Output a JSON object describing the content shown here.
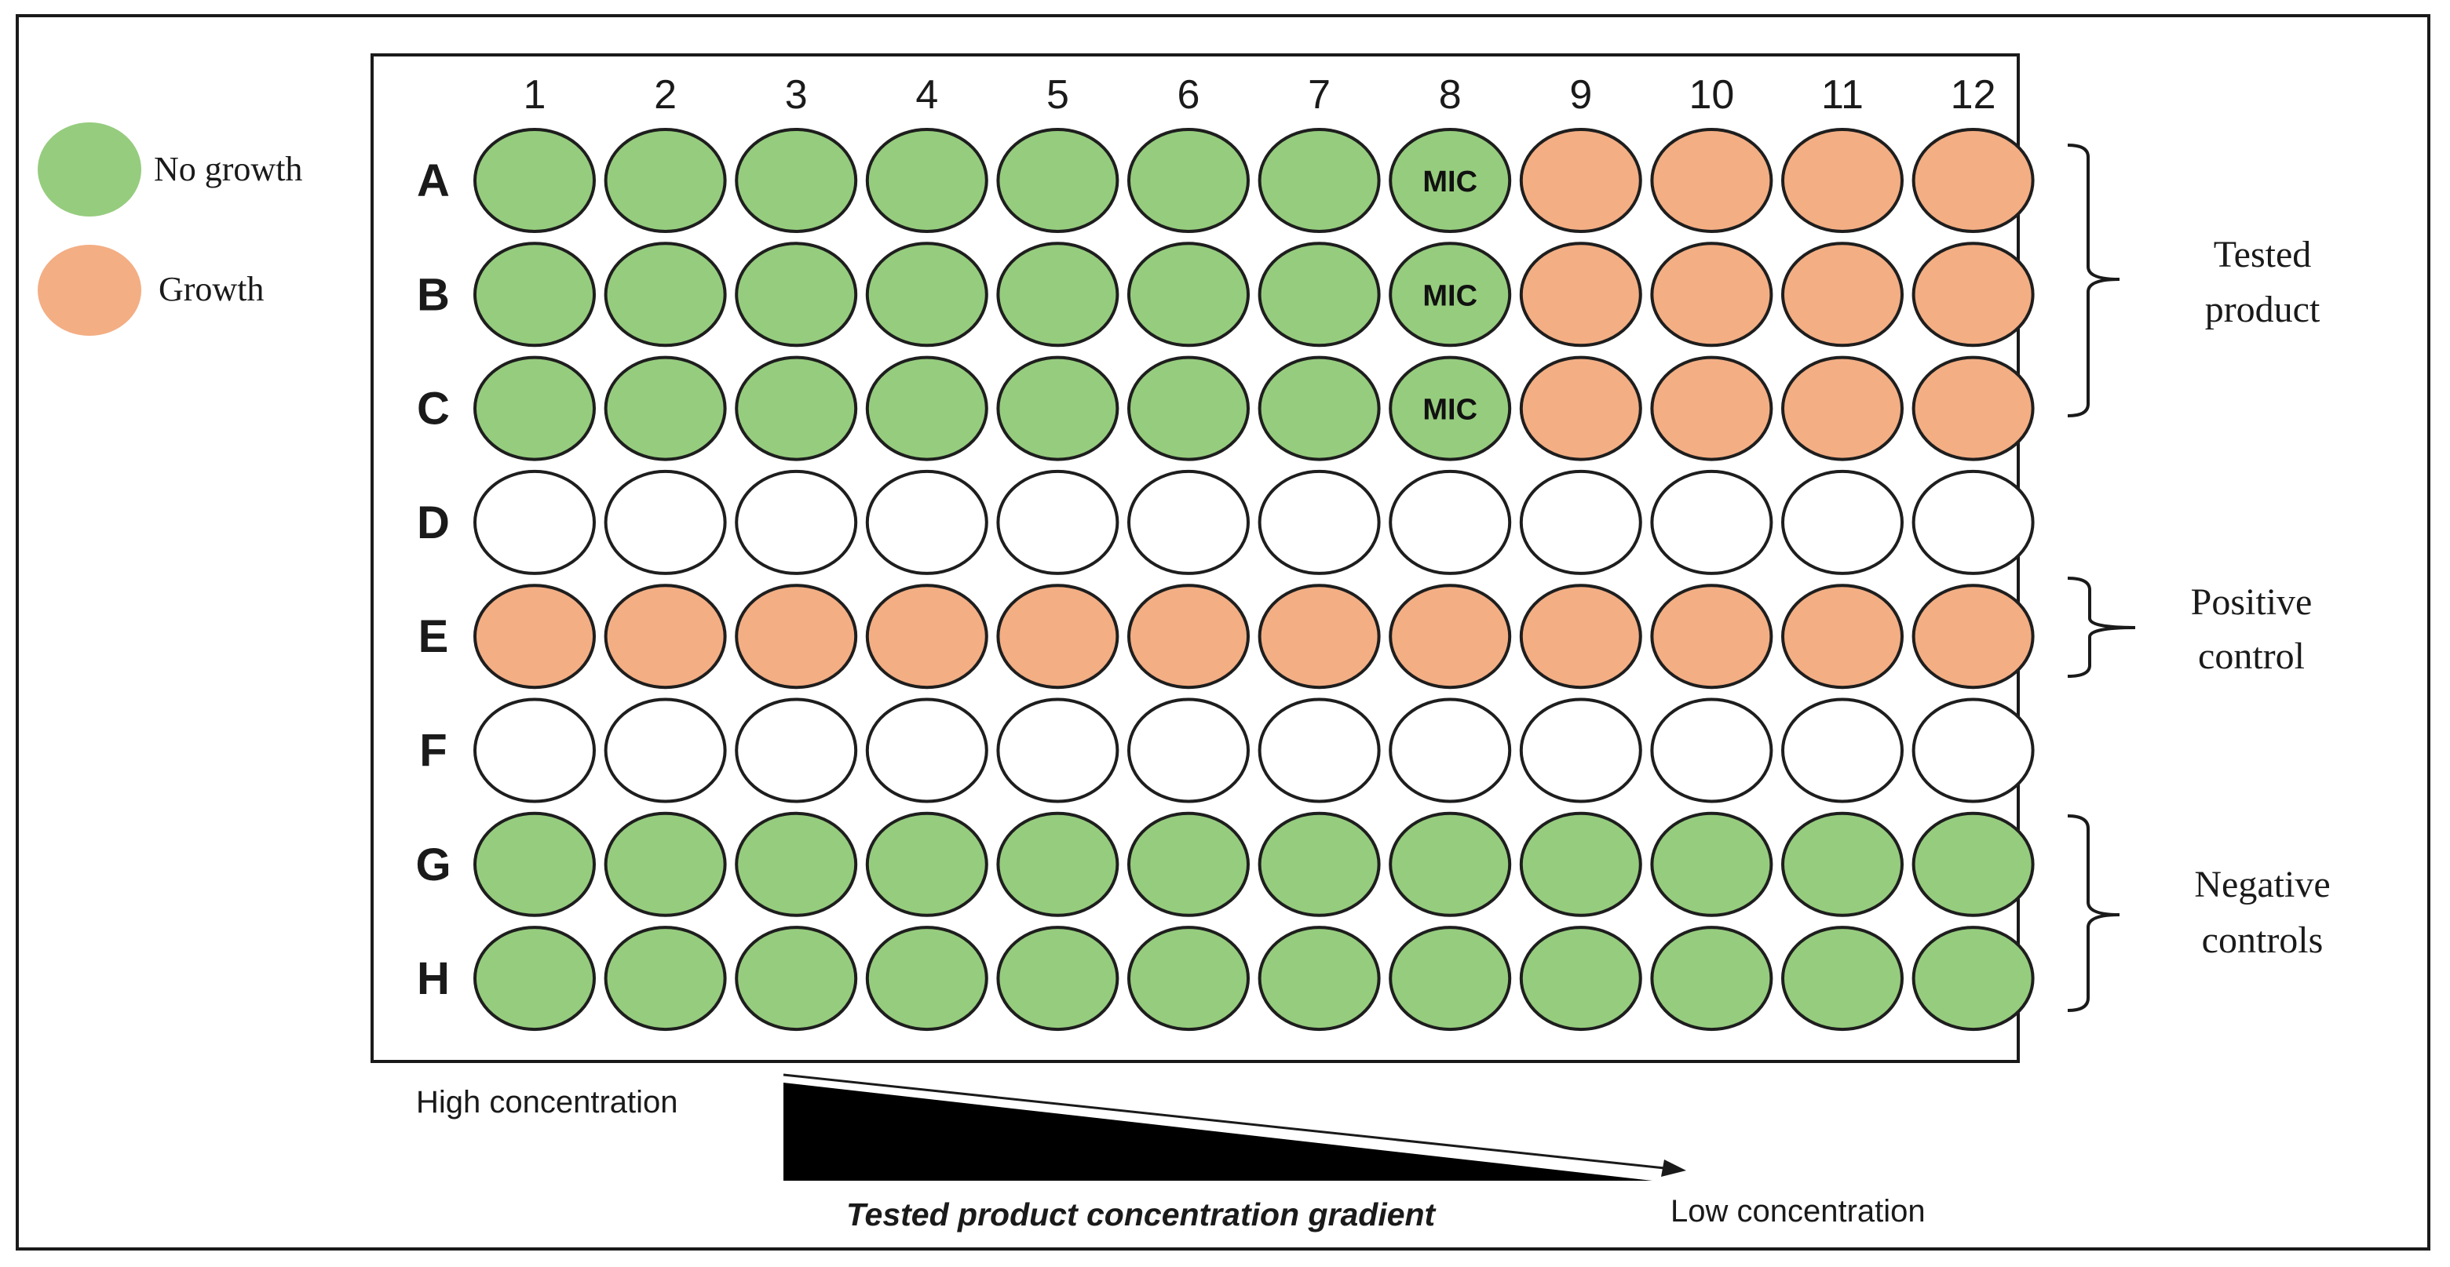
{
  "colors": {
    "no_growth": "#96cc7e",
    "growth": "#f3ae84",
    "empty": "#ffffff",
    "outline": "#1e1e1e"
  },
  "legend": [
    {
      "label": "No growth",
      "state": "no_growth"
    },
    {
      "label": "Growth",
      "state": "growth"
    }
  ],
  "plate": {
    "columns": [
      "1",
      "2",
      "3",
      "4",
      "5",
      "6",
      "7",
      "8",
      "9",
      "10",
      "11",
      "12"
    ],
    "rows": [
      {
        "label": "A",
        "wells": [
          "no_growth",
          "no_growth",
          "no_growth",
          "no_growth",
          "no_growth",
          "no_growth",
          "no_growth",
          "no_growth",
          "growth",
          "growth",
          "growth",
          "growth"
        ]
      },
      {
        "label": "B",
        "wells": [
          "no_growth",
          "no_growth",
          "no_growth",
          "no_growth",
          "no_growth",
          "no_growth",
          "no_growth",
          "no_growth",
          "growth",
          "growth",
          "growth",
          "growth"
        ]
      },
      {
        "label": "C",
        "wells": [
          "no_growth",
          "no_growth",
          "no_growth",
          "no_growth",
          "no_growth",
          "no_growth",
          "no_growth",
          "no_growth",
          "growth",
          "growth",
          "growth",
          "growth"
        ]
      },
      {
        "label": "D",
        "wells": [
          "empty",
          "empty",
          "empty",
          "empty",
          "empty",
          "empty",
          "empty",
          "empty",
          "empty",
          "empty",
          "empty",
          "empty"
        ]
      },
      {
        "label": "E",
        "wells": [
          "growth",
          "growth",
          "growth",
          "growth",
          "growth",
          "growth",
          "growth",
          "growth",
          "growth",
          "growth",
          "growth",
          "growth"
        ]
      },
      {
        "label": "F",
        "wells": [
          "empty",
          "empty",
          "empty",
          "empty",
          "empty",
          "empty",
          "empty",
          "empty",
          "empty",
          "empty",
          "empty",
          "empty"
        ]
      },
      {
        "label": "G",
        "wells": [
          "no_growth",
          "no_growth",
          "no_growth",
          "no_growth",
          "no_growth",
          "no_growth",
          "no_growth",
          "no_growth",
          "no_growth",
          "no_growth",
          "no_growth",
          "no_growth"
        ]
      },
      {
        "label": "H",
        "wells": [
          "no_growth",
          "no_growth",
          "no_growth",
          "no_growth",
          "no_growth",
          "no_growth",
          "no_growth",
          "no_growth",
          "no_growth",
          "no_growth",
          "no_growth",
          "no_growth"
        ]
      }
    ],
    "mic_label": "MIC",
    "mic_wells": [
      {
        "row": "A",
        "column": "8"
      },
      {
        "row": "B",
        "column": "8"
      },
      {
        "row": "C",
        "column": "8"
      }
    ]
  },
  "groups": [
    {
      "label_lines": [
        "Tested",
        "product"
      ],
      "rows": [
        "A",
        "B",
        "C"
      ]
    },
    {
      "label_lines": [
        "Positive",
        "control"
      ],
      "rows": [
        "E"
      ]
    },
    {
      "label_lines": [
        "Negative",
        "controls"
      ],
      "rows": [
        "G",
        "H"
      ]
    }
  ],
  "gradient": {
    "high_label": "High concentration",
    "low_label": "Low concentration",
    "caption": "Tested product concentration gradient"
  }
}
